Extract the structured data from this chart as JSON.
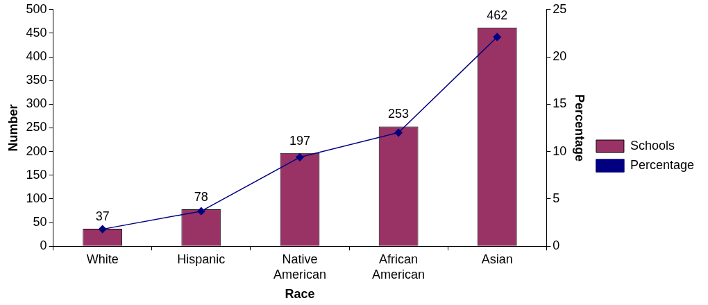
{
  "chart_data": {
    "type": "bar",
    "xlabel": "Race",
    "ylabel": "Number",
    "y2label": "Percentage",
    "categories": [
      "White",
      "Hispanic",
      "Native American",
      "African American",
      "Asian"
    ],
    "series": [
      {
        "name": "Schools",
        "color": "#993366",
        "values": [
          37,
          78,
          197,
          253,
          462
        ],
        "value_labels": [
          "37",
          "78",
          "197",
          "253",
          "462"
        ]
      },
      {
        "name": "Percentage",
        "type": "line",
        "axis": "y2",
        "color": "#000080",
        "marker": "diamond",
        "values": [
          1.8,
          3.7,
          9.4,
          12.0,
          22.1
        ]
      }
    ],
    "ylim": [
      0,
      500
    ],
    "yticks": [
      0,
      50,
      100,
      150,
      200,
      250,
      300,
      350,
      400,
      450,
      500
    ],
    "y2lim": [
      0,
      25
    ],
    "y2ticks": [
      0,
      5,
      10,
      15,
      20,
      25
    ],
    "grid": false,
    "legend": "right"
  }
}
